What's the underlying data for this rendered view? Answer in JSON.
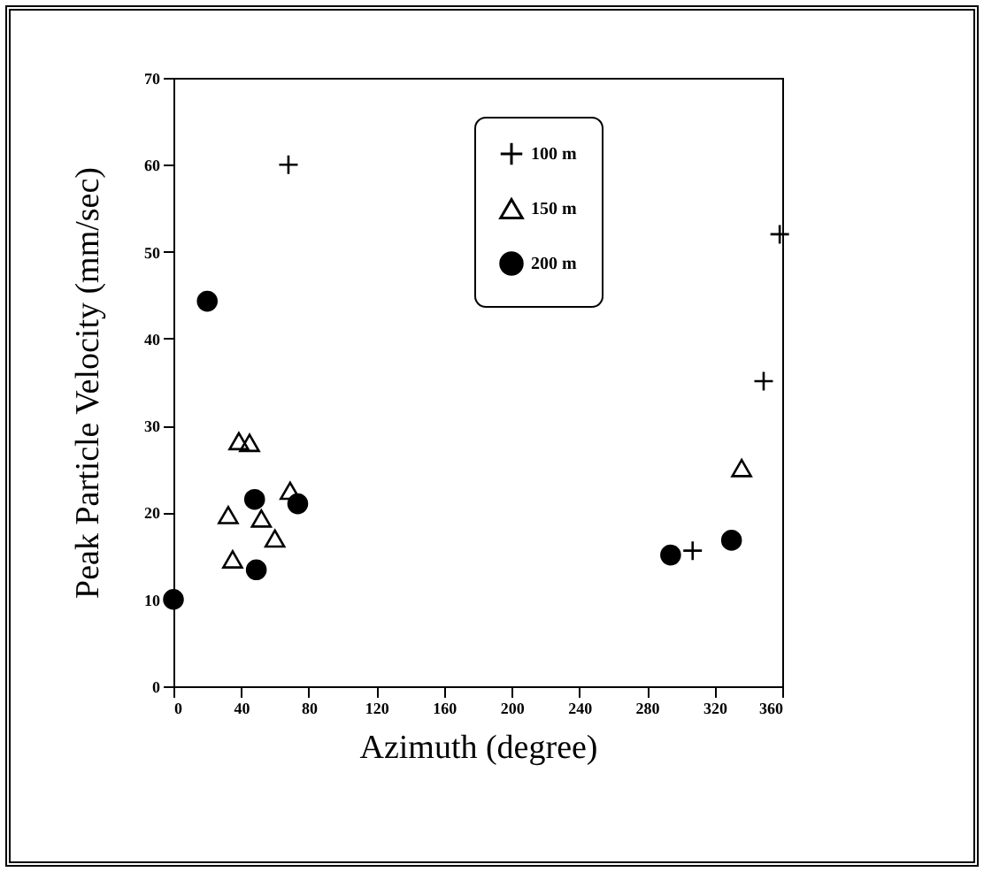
{
  "chart_data": {
    "type": "scatter",
    "xlabel": "Azimuth (degree)",
    "ylabel": "Peak Particle Velocity (mm/sec)",
    "xlim": [
      0,
      360
    ],
    "xticks": [
      0,
      40,
      80,
      120,
      160,
      200,
      240,
      280,
      320,
      360
    ],
    "ylim": [
      0,
      70
    ],
    "yticks": [
      0,
      10,
      20,
      30,
      40,
      50,
      60,
      70
    ],
    "grid": false,
    "legend": "top right",
    "series": [
      {
        "name": "100 m",
        "color": "#000000",
        "marker": "cross",
        "x": [
          68,
          358.5,
          349,
          307
        ],
        "values": [
          60,
          52,
          35.1,
          15.6
        ]
      },
      {
        "name": "150 m",
        "color": "#000000",
        "marker": "triangle",
        "x": [
          38.7,
          45,
          32.4,
          35,
          52,
          60,
          69,
          336
        ],
        "values": [
          28.2,
          28,
          19.7,
          14.6,
          19.3,
          17,
          22.5,
          25.1
        ]
      },
      {
        "name": "200 m",
        "color": "#000000",
        "marker": "circle",
        "x": [
          20,
          0,
          48,
          49,
          73.5,
          294,
          330
        ],
        "values": [
          44.3,
          10,
          21.5,
          13.4,
          21,
          15.1,
          16.8
        ]
      }
    ]
  }
}
